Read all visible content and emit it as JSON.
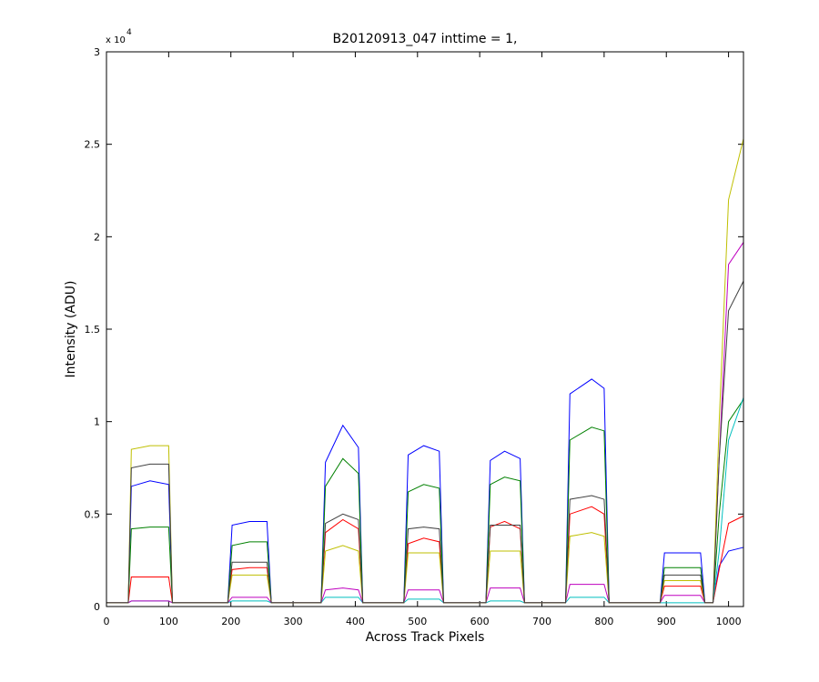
{
  "chart_data": {
    "type": "line",
    "title": "B20120913_047 inttime = 1,",
    "x_label": "Across Track Pixels",
    "y_label": "Intensity (ADU)",
    "y_multiplier": "x 10",
    "y_multiplier_exponent": "4",
    "xlim": [
      0,
      1024
    ],
    "xticks": [
      0,
      100,
      200,
      300,
      400,
      500,
      600,
      700,
      800,
      900,
      1000
    ],
    "ylim": [
      0,
      3
    ],
    "yticks": [
      0,
      0.5,
      1,
      1.5,
      2,
      2.5,
      3
    ],
    "grid": false,
    "x": [
      0,
      35,
      40,
      70,
      100,
      106,
      112,
      195,
      202,
      230,
      258,
      265,
      270,
      345,
      352,
      380,
      405,
      412,
      418,
      478,
      485,
      510,
      535,
      542,
      548,
      610,
      617,
      640,
      665,
      672,
      678,
      738,
      745,
      780,
      800,
      808,
      814,
      890,
      897,
      925,
      955,
      962,
      975,
      985,
      1000,
      1024
    ],
    "series": [
      {
        "color": "#0000ff",
        "values": [
          0.02,
          0.02,
          0.65,
          0.68,
          0.66,
          0.02,
          0.02,
          0.02,
          0.44,
          0.46,
          0.46,
          0.02,
          0.02,
          0.02,
          0.78,
          0.98,
          0.86,
          0.02,
          0.02,
          0.02,
          0.82,
          0.87,
          0.84,
          0.02,
          0.02,
          0.02,
          0.79,
          0.84,
          0.8,
          0.02,
          0.02,
          0.02,
          1.15,
          1.23,
          1.18,
          0.02,
          0.02,
          0.02,
          0.29,
          0.29,
          0.29,
          0.02,
          0.02,
          0.22,
          0.3,
          0.32
        ]
      },
      {
        "color": "#008000",
        "values": [
          0.02,
          0.02,
          0.42,
          0.43,
          0.43,
          0.02,
          0.02,
          0.02,
          0.33,
          0.35,
          0.35,
          0.02,
          0.02,
          0.02,
          0.65,
          0.8,
          0.72,
          0.02,
          0.02,
          0.02,
          0.62,
          0.66,
          0.64,
          0.02,
          0.02,
          0.02,
          0.66,
          0.7,
          0.68,
          0.02,
          0.02,
          0.02,
          0.9,
          0.97,
          0.95,
          0.02,
          0.02,
          0.02,
          0.21,
          0.21,
          0.21,
          0.02,
          0.02,
          0.5,
          1.0,
          1.12
        ]
      },
      {
        "color": "#ff0000",
        "values": [
          0.02,
          0.02,
          0.16,
          0.16,
          0.16,
          0.02,
          0.02,
          0.02,
          0.2,
          0.21,
          0.21,
          0.02,
          0.02,
          0.02,
          0.4,
          0.47,
          0.42,
          0.02,
          0.02,
          0.02,
          0.34,
          0.37,
          0.35,
          0.02,
          0.02,
          0.02,
          0.43,
          0.46,
          0.42,
          0.02,
          0.02,
          0.02,
          0.5,
          0.54,
          0.5,
          0.02,
          0.02,
          0.02,
          0.11,
          0.11,
          0.11,
          0.02,
          0.02,
          0.2,
          0.45,
          0.49
        ]
      },
      {
        "color": "#00bfbf",
        "values": [
          0.02,
          0.02,
          0.03,
          0.03,
          0.03,
          0.02,
          0.02,
          0.02,
          0.03,
          0.03,
          0.03,
          0.02,
          0.02,
          0.02,
          0.05,
          0.05,
          0.05,
          0.02,
          0.02,
          0.02,
          0.04,
          0.04,
          0.04,
          0.02,
          0.02,
          0.02,
          0.03,
          0.03,
          0.03,
          0.02,
          0.02,
          0.02,
          0.05,
          0.05,
          0.05,
          0.02,
          0.02,
          0.02,
          0.02,
          0.02,
          0.02,
          0.02,
          0.02,
          0.3,
          0.9,
          1.13
        ]
      },
      {
        "color": "#bf00bf",
        "values": [
          0.02,
          0.02,
          0.03,
          0.03,
          0.03,
          0.02,
          0.02,
          0.02,
          0.05,
          0.05,
          0.05,
          0.02,
          0.02,
          0.02,
          0.09,
          0.1,
          0.09,
          0.02,
          0.02,
          0.02,
          0.09,
          0.09,
          0.09,
          0.02,
          0.02,
          0.02,
          0.1,
          0.1,
          0.1,
          0.02,
          0.02,
          0.02,
          0.12,
          0.12,
          0.12,
          0.02,
          0.02,
          0.02,
          0.06,
          0.06,
          0.06,
          0.02,
          0.02,
          0.8,
          1.85,
          1.97
        ]
      },
      {
        "color": "#bfbf00",
        "values": [
          0.02,
          0.02,
          0.85,
          0.87,
          0.87,
          0.02,
          0.02,
          0.02,
          0.17,
          0.17,
          0.17,
          0.02,
          0.02,
          0.02,
          0.3,
          0.33,
          0.3,
          0.02,
          0.02,
          0.02,
          0.29,
          0.29,
          0.29,
          0.02,
          0.02,
          0.02,
          0.3,
          0.3,
          0.3,
          0.02,
          0.02,
          0.02,
          0.38,
          0.4,
          0.38,
          0.02,
          0.02,
          0.02,
          0.14,
          0.14,
          0.14,
          0.02,
          0.02,
          1.0,
          2.2,
          2.53
        ]
      },
      {
        "color": "#404040",
        "values": [
          0.02,
          0.02,
          0.75,
          0.77,
          0.77,
          0.02,
          0.02,
          0.02,
          0.24,
          0.24,
          0.24,
          0.02,
          0.02,
          0.02,
          0.45,
          0.5,
          0.47,
          0.02,
          0.02,
          0.02,
          0.42,
          0.43,
          0.42,
          0.02,
          0.02,
          0.02,
          0.44,
          0.44,
          0.44,
          0.02,
          0.02,
          0.02,
          0.58,
          0.6,
          0.58,
          0.02,
          0.02,
          0.02,
          0.17,
          0.17,
          0.17,
          0.02,
          0.02,
          0.8,
          1.6,
          1.76
        ]
      }
    ]
  }
}
